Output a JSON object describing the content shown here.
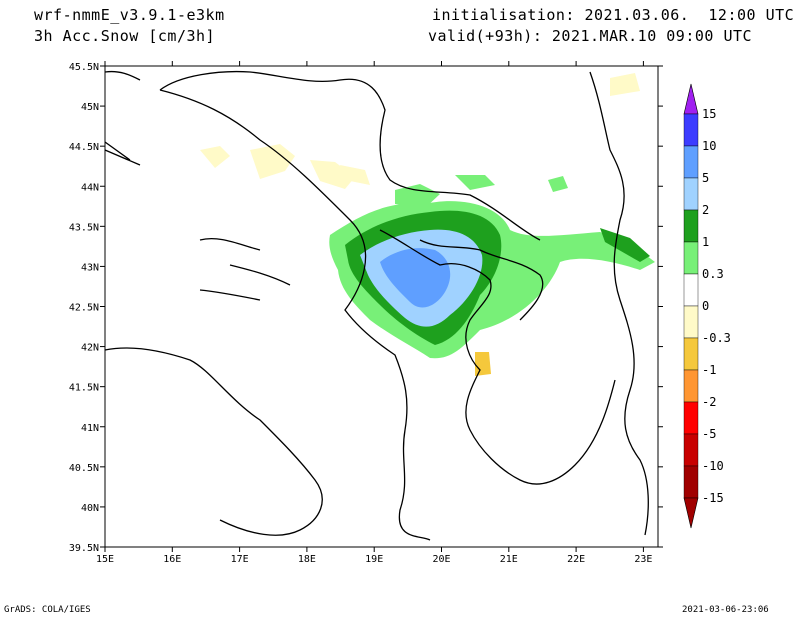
{
  "header": {
    "model": "wrf-nmmE_v3.9.1-e3km",
    "field": "3h Acc.Snow [cm/3h]",
    "init": "initialisation: 2021.03.06.  12:00 UTC",
    "valid": "valid(+93h): 2021.MAR.10 09:00 UTC"
  },
  "footer": {
    "left": "GrADS: COLA/IGES",
    "right": "2021-03-06-23:06"
  },
  "map": {
    "lat_labels": [
      "45.5N",
      "45N",
      "44.5N",
      "44N",
      "43.5N",
      "43N",
      "42.5N",
      "42N",
      "41.5N",
      "41N",
      "40.5N",
      "40N",
      "39.5N"
    ],
    "lon_labels": [
      "15E",
      "16E",
      "17E",
      "18E",
      "19E",
      "20E",
      "21E",
      "22E",
      "23E"
    ]
  },
  "colorbar": {
    "labels": [
      "15",
      "10",
      "5",
      "2",
      "1",
      "0.3",
      "0",
      "-0.3",
      "-1",
      "-2",
      "-5",
      "-10",
      "-15"
    ],
    "colors": [
      "#a020f0",
      "#3c3cff",
      "#5f9fff",
      "#a0d2ff",
      "#1ea01e",
      "#78f078",
      "#ffffff",
      "#fffac8",
      "#f5c83c",
      "#ff9632",
      "#ff0000",
      "#c80000",
      "#a00000"
    ]
  }
}
